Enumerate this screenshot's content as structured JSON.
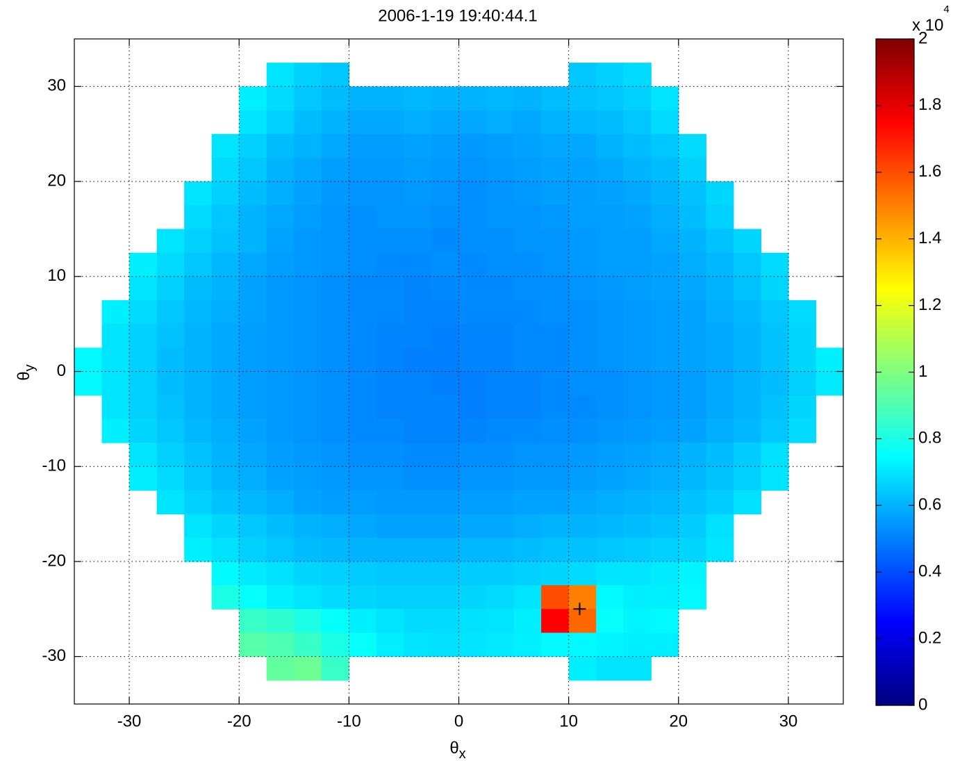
{
  "chart_data": {
    "type": "heatmap",
    "title": "2006-1-19 19:40:44.1",
    "xlabel": {
      "symbol": "θ",
      "subscript": "x"
    },
    "ylabel": {
      "symbol": "θ",
      "subscript": "y"
    },
    "xlim": [
      -35,
      35
    ],
    "ylim": [
      -35,
      35
    ],
    "xticks": [
      -30,
      -20,
      -10,
      0,
      10,
      20,
      30
    ],
    "yticks": [
      -30,
      -20,
      -10,
      0,
      10,
      20,
      30
    ],
    "grid": true,
    "colormap": "jet",
    "clim": [
      0,
      2
    ],
    "cticks": [
      0,
      0.2,
      0.4,
      0.6,
      0.8,
      1,
      1.2,
      1.4,
      1.6,
      1.8,
      2
    ],
    "colorbar_multiplier": {
      "base": "x 10",
      "exponent": "4"
    },
    "marker": {
      "x": 11,
      "y": -25,
      "color": "#000000"
    },
    "x": [
      -33.75,
      -31.25,
      -28.75,
      -26.25,
      -23.75,
      -21.25,
      -18.75,
      -16.25,
      -13.75,
      -11.25,
      -8.75,
      -6.25,
      -3.75,
      -1.25,
      1.25,
      3.75,
      6.25,
      8.75,
      11.25,
      13.75,
      16.25,
      18.75,
      21.25,
      23.75,
      26.25,
      28.75,
      31.25,
      33.75
    ],
    "y": [
      33.75,
      31.25,
      28.75,
      26.25,
      23.75,
      21.25,
      18.75,
      16.25,
      13.75,
      11.25,
      8.75,
      6.25,
      3.75,
      1.25,
      -1.25,
      -3.75,
      -6.25,
      -8.75,
      -11.25,
      -13.75,
      -16.25,
      -18.75,
      -21.25,
      -23.75,
      -26.25,
      -28.75,
      -31.25,
      -33.75
    ],
    "z": [
      [
        null,
        null,
        null,
        null,
        null,
        null,
        null,
        null,
        null,
        null,
        null,
        null,
        null,
        null,
        null,
        null,
        null,
        null,
        null,
        null,
        null,
        null,
        null,
        null,
        null,
        null,
        null,
        null
      ],
      [
        null,
        null,
        null,
        null,
        null,
        null,
        null,
        0.7,
        0.66,
        0.64,
        null,
        null,
        null,
        null,
        null,
        null,
        null,
        null,
        0.64,
        0.66,
        0.68,
        null,
        null,
        null,
        null,
        null,
        null,
        null
      ],
      [
        null,
        null,
        null,
        null,
        null,
        null,
        0.72,
        0.68,
        0.64,
        0.62,
        0.6,
        0.6,
        0.61,
        0.6,
        0.6,
        0.61,
        0.6,
        0.62,
        0.63,
        0.64,
        0.66,
        0.7,
        null,
        null,
        null,
        null,
        null,
        null
      ],
      [
        null,
        null,
        null,
        null,
        null,
        null,
        0.7,
        0.66,
        0.62,
        0.6,
        0.58,
        0.58,
        0.59,
        0.58,
        0.58,
        0.59,
        0.58,
        0.6,
        0.61,
        0.62,
        0.64,
        0.68,
        null,
        null,
        null,
        null,
        null,
        null
      ],
      [
        null,
        null,
        null,
        null,
        null,
        0.7,
        0.66,
        0.62,
        0.6,
        0.58,
        0.56,
        0.56,
        0.57,
        0.56,
        0.55,
        0.56,
        0.57,
        0.58,
        0.58,
        0.6,
        0.62,
        0.64,
        0.68,
        null,
        null,
        null,
        null,
        null
      ],
      [
        null,
        null,
        null,
        null,
        null,
        0.68,
        0.64,
        0.6,
        0.58,
        0.56,
        0.55,
        0.55,
        0.56,
        0.55,
        0.54,
        0.55,
        0.56,
        0.57,
        0.57,
        0.58,
        0.6,
        0.62,
        0.66,
        null,
        null,
        null,
        null,
        null
      ],
      [
        null,
        null,
        null,
        null,
        0.7,
        0.66,
        0.62,
        0.59,
        0.57,
        0.55,
        0.54,
        0.54,
        0.55,
        0.54,
        0.53,
        0.54,
        0.55,
        0.56,
        0.56,
        0.57,
        0.58,
        0.6,
        0.63,
        0.67,
        null,
        null,
        null,
        null
      ],
      [
        null,
        null,
        null,
        null,
        0.68,
        0.64,
        0.6,
        0.58,
        0.56,
        0.54,
        0.53,
        0.54,
        0.54,
        0.53,
        0.53,
        0.54,
        0.54,
        0.55,
        0.56,
        0.56,
        0.57,
        0.59,
        0.62,
        0.66,
        null,
        null,
        null,
        null
      ],
      [
        null,
        null,
        null,
        0.7,
        0.66,
        0.63,
        0.6,
        0.57,
        0.55,
        0.54,
        0.53,
        0.53,
        0.53,
        0.52,
        0.53,
        0.53,
        0.54,
        0.54,
        0.55,
        0.56,
        0.56,
        0.58,
        0.6,
        0.63,
        0.67,
        null,
        null,
        null
      ],
      [
        null,
        null,
        0.72,
        0.68,
        0.64,
        0.61,
        0.58,
        0.56,
        0.55,
        0.54,
        0.53,
        0.52,
        0.52,
        0.53,
        0.52,
        0.53,
        0.53,
        0.54,
        0.55,
        0.56,
        0.56,
        0.57,
        0.59,
        0.61,
        0.64,
        0.68,
        null,
        null
      ],
      [
        null,
        null,
        0.7,
        0.66,
        0.62,
        0.6,
        0.57,
        0.55,
        0.54,
        0.53,
        0.52,
        0.52,
        0.51,
        0.52,
        0.52,
        0.52,
        0.53,
        0.53,
        0.54,
        0.55,
        0.56,
        0.57,
        0.58,
        0.6,
        0.63,
        0.67,
        null,
        null
      ],
      [
        null,
        0.72,
        0.68,
        0.64,
        0.61,
        0.59,
        0.57,
        0.55,
        0.54,
        0.53,
        0.52,
        0.52,
        0.51,
        0.51,
        0.52,
        0.52,
        0.52,
        0.53,
        0.53,
        0.54,
        0.55,
        0.56,
        0.57,
        0.59,
        0.61,
        0.64,
        0.68,
        null
      ],
      [
        null,
        0.7,
        0.66,
        0.63,
        0.6,
        0.58,
        0.56,
        0.55,
        0.54,
        0.53,
        0.52,
        0.51,
        0.51,
        0.5,
        0.51,
        0.51,
        0.52,
        0.52,
        0.53,
        0.54,
        0.55,
        0.56,
        0.57,
        0.58,
        0.6,
        0.63,
        0.67,
        null
      ],
      [
        0.74,
        0.7,
        0.66,
        0.62,
        0.6,
        0.58,
        0.56,
        0.55,
        0.54,
        0.53,
        0.52,
        0.51,
        0.5,
        0.5,
        0.51,
        0.51,
        0.52,
        0.52,
        0.53,
        0.54,
        0.55,
        0.56,
        0.57,
        0.58,
        0.6,
        0.63,
        0.67,
        0.72
      ],
      [
        0.74,
        0.7,
        0.66,
        0.62,
        0.6,
        0.58,
        0.56,
        0.55,
        0.54,
        0.53,
        0.52,
        0.51,
        0.51,
        0.5,
        0.5,
        0.51,
        0.51,
        0.52,
        0.53,
        0.53,
        0.54,
        0.55,
        0.56,
        0.58,
        0.6,
        0.62,
        0.66,
        0.71
      ],
      [
        null,
        0.7,
        0.66,
        0.63,
        0.6,
        0.58,
        0.56,
        0.55,
        0.54,
        0.53,
        0.52,
        0.51,
        0.51,
        0.51,
        0.5,
        0.51,
        0.51,
        0.52,
        0.52,
        0.53,
        0.54,
        0.55,
        0.56,
        0.58,
        0.6,
        0.63,
        0.67,
        null
      ],
      [
        null,
        0.72,
        0.67,
        0.64,
        0.61,
        0.59,
        0.57,
        0.55,
        0.54,
        0.53,
        0.52,
        0.52,
        0.51,
        0.51,
        0.51,
        0.52,
        0.52,
        0.53,
        0.53,
        0.54,
        0.55,
        0.56,
        0.57,
        0.59,
        0.61,
        0.64,
        0.68,
        null
      ],
      [
        null,
        null,
        0.7,
        0.66,
        0.63,
        0.6,
        0.58,
        0.56,
        0.55,
        0.54,
        0.53,
        0.53,
        0.52,
        0.52,
        0.53,
        0.53,
        0.54,
        0.54,
        0.55,
        0.56,
        0.57,
        0.58,
        0.6,
        0.62,
        0.65,
        0.69,
        null,
        null
      ],
      [
        null,
        null,
        0.72,
        0.68,
        0.64,
        0.61,
        0.59,
        0.57,
        0.56,
        0.55,
        0.54,
        0.54,
        0.53,
        0.53,
        0.54,
        0.54,
        0.55,
        0.55,
        0.56,
        0.57,
        0.58,
        0.59,
        0.61,
        0.63,
        0.66,
        0.7,
        null,
        null
      ],
      [
        null,
        null,
        null,
        0.7,
        0.66,
        0.63,
        0.61,
        0.59,
        0.57,
        0.56,
        0.56,
        0.55,
        0.55,
        0.55,
        0.56,
        0.56,
        0.57,
        0.57,
        0.58,
        0.59,
        0.6,
        0.61,
        0.63,
        0.65,
        0.69,
        null,
        null,
        null
      ],
      [
        null,
        null,
        null,
        null,
        0.7,
        0.67,
        0.64,
        0.62,
        0.6,
        0.59,
        0.58,
        0.57,
        0.57,
        0.57,
        0.58,
        0.58,
        0.59,
        0.6,
        0.6,
        0.61,
        0.62,
        0.63,
        0.65,
        0.69,
        null,
        null,
        null,
        null
      ],
      [
        null,
        null,
        null,
        null,
        0.72,
        0.69,
        0.66,
        0.64,
        0.62,
        0.61,
        0.6,
        0.6,
        0.6,
        0.6,
        0.61,
        0.61,
        0.62,
        0.63,
        0.63,
        0.64,
        0.65,
        0.66,
        0.67,
        0.7,
        null,
        null,
        null,
        null
      ],
      [
        null,
        null,
        null,
        null,
        null,
        0.74,
        0.71,
        0.69,
        0.67,
        0.66,
        0.65,
        0.64,
        0.64,
        0.64,
        0.65,
        0.65,
        0.66,
        0.67,
        0.68,
        0.7,
        0.7,
        0.71,
        0.73,
        null,
        null,
        null,
        null,
        null
      ],
      [
        null,
        null,
        null,
        null,
        null,
        0.8,
        0.76,
        0.72,
        0.7,
        0.68,
        0.67,
        0.66,
        0.66,
        0.66,
        0.67,
        0.68,
        0.7,
        1.6,
        1.5,
        0.74,
        0.72,
        0.72,
        0.74,
        null,
        null,
        null,
        null,
        null
      ],
      [
        null,
        null,
        null,
        null,
        null,
        null,
        0.86,
        0.84,
        0.8,
        0.76,
        0.72,
        0.7,
        0.68,
        0.68,
        0.69,
        0.7,
        0.72,
        1.75,
        1.55,
        0.76,
        0.73,
        0.74,
        null,
        null,
        null,
        null,
        null,
        null
      ],
      [
        null,
        null,
        null,
        null,
        null,
        null,
        0.92,
        0.9,
        0.86,
        0.8,
        0.76,
        0.72,
        0.7,
        0.69,
        0.7,
        0.71,
        0.72,
        0.74,
        0.74,
        0.73,
        0.72,
        0.72,
        null,
        null,
        null,
        null,
        null,
        null
      ],
      [
        null,
        null,
        null,
        null,
        null,
        null,
        null,
        0.94,
        0.96,
        0.86,
        null,
        null,
        null,
        null,
        null,
        null,
        null,
        null,
        0.72,
        0.7,
        0.7,
        null,
        null,
        null,
        null,
        null,
        null,
        null
      ],
      [
        null,
        null,
        null,
        null,
        null,
        null,
        null,
        null,
        null,
        null,
        null,
        null,
        null,
        null,
        null,
        null,
        null,
        null,
        null,
        null,
        null,
        null,
        null,
        null,
        null,
        null,
        null,
        null
      ]
    ]
  }
}
